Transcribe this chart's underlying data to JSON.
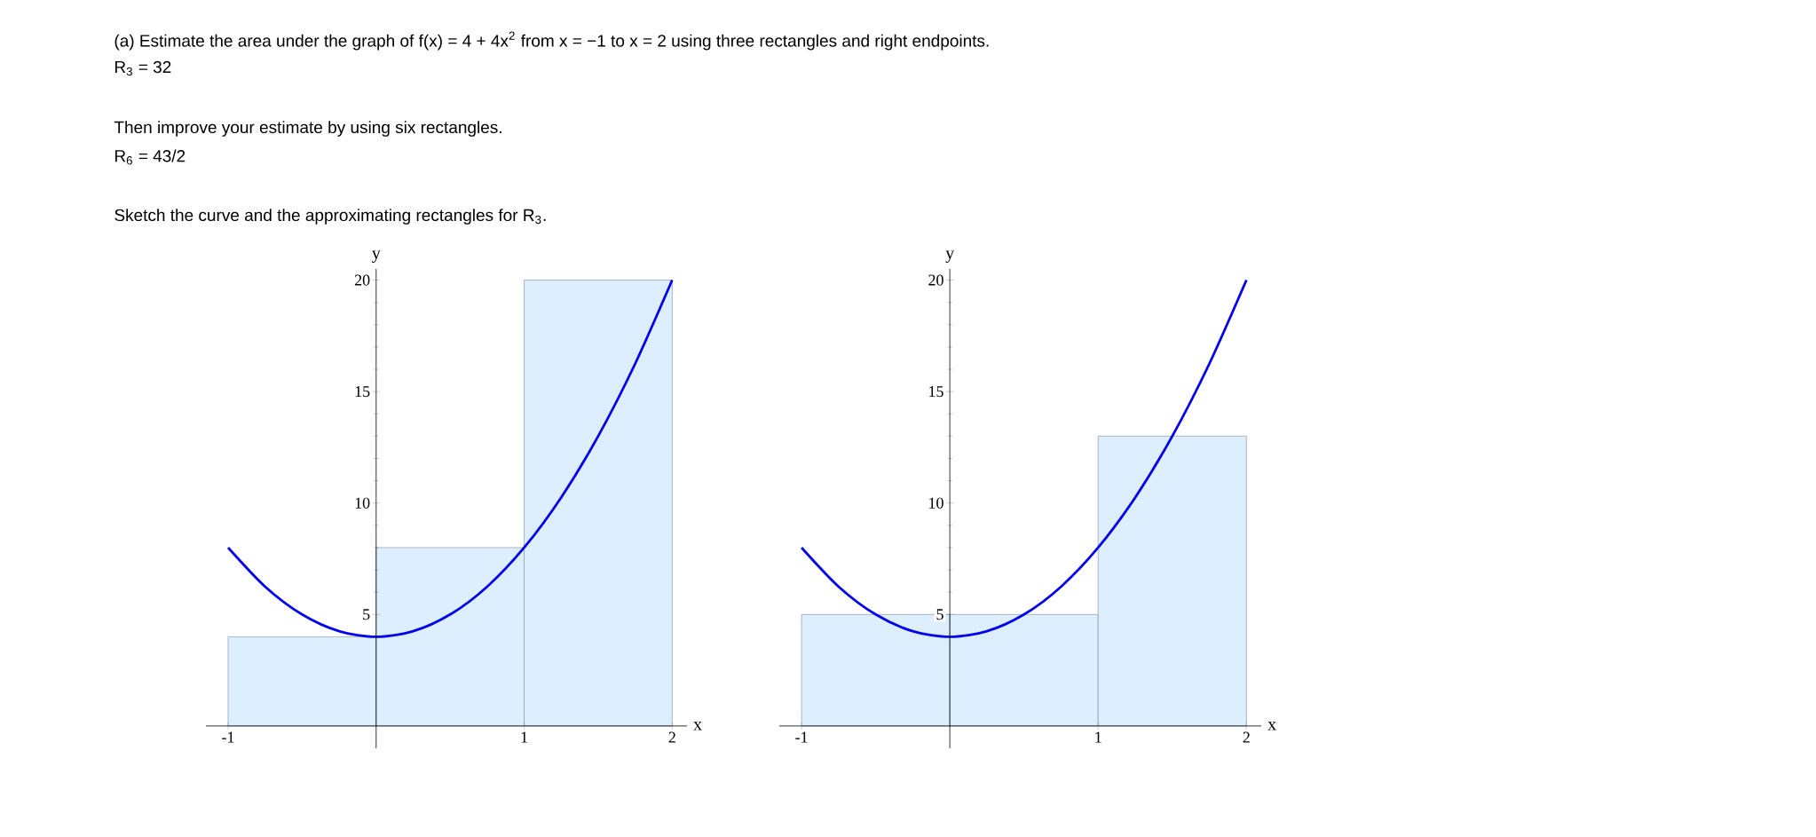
{
  "chart_data": [
    {
      "type": "histogram",
      "bins": [
        -1,
        0,
        1,
        2
      ],
      "values": [
        4,
        8,
        20
      ],
      "color": "#ddeeff",
      "series": [
        {
          "type": "line",
          "color": "#0000ee",
          "x": [
            -1,
            -0.75,
            -0.5,
            -0.25,
            0,
            0.25,
            0.5,
            0.75,
            1,
            1.25,
            1.5,
            1.75,
            2
          ],
          "values": [
            8,
            6.25,
            5,
            4.25,
            4,
            4.25,
            5,
            6.25,
            8,
            10.25,
            13,
            16.25,
            20
          ]
        }
      ],
      "xlim": [
        -1.15,
        2.1
      ],
      "ylim": [
        -1,
        20.5
      ],
      "xticks": [
        -1,
        1,
        2
      ],
      "yticks": [
        5,
        10,
        15,
        20
      ],
      "xlabel": "x",
      "ylabel": "y",
      "annotations": [
        "(a) Estimate the area under the graph of f(x) = 4 + 4x$^{2}$ from x = −1 to x = 2  using three rectangles and right endpoints.",
        "R$_{3}$ = 32",
        "Then improve your estimate by using six rectangles.",
        "R$_{6}$ = 43/2",
        "Sketch the curve and the approximating rectangles for R$_{3}$."
      ]
    },
    {
      "type": "histogram",
      "bins": [
        -1,
        0,
        1,
        2
      ],
      "values": [
        5,
        5,
        13
      ],
      "color": "#ddeeff",
      "series": [
        {
          "type": "line",
          "color": "#0000ee",
          "x": [
            -1,
            -0.75,
            -0.5,
            -0.25,
            0,
            0.25,
            0.5,
            0.75,
            1,
            1.25,
            1.5,
            1.75,
            2
          ],
          "values": [
            8,
            6.25,
            5,
            4.25,
            4,
            4.25,
            5,
            6.25,
            8,
            10.25,
            13,
            16.25,
            20
          ]
        }
      ],
      "xlim": [
        -1.15,
        2.1
      ],
      "ylim": [
        -1,
        20.5
      ],
      "xticks": [
        -1,
        1,
        2
      ],
      "yticks": [
        5,
        10,
        15,
        20
      ],
      "xlabel": "x",
      "ylabel": "y"
    }
  ]
}
